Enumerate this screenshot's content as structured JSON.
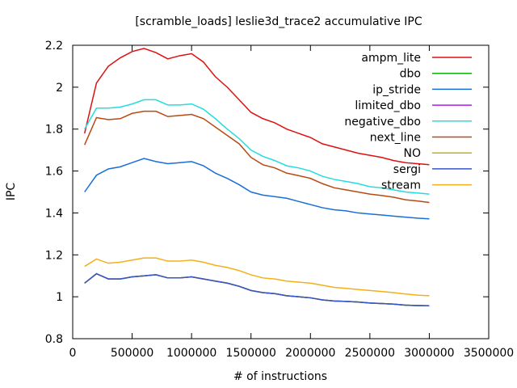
{
  "chart_data": {
    "type": "line",
    "title": "[scramble_loads] leslie3d_trace2 accumulative IPC",
    "xlabel": "# of instructions",
    "ylabel": "IPC",
    "xlim": [
      0,
      3500000
    ],
    "ylim": [
      0.8,
      2.2
    ],
    "xticks": [
      0,
      500000,
      1000000,
      1500000,
      2000000,
      2500000,
      3000000,
      3500000
    ],
    "yticks": [
      0.8,
      1,
      1.2,
      1.4,
      1.6,
      1.8,
      2,
      2.2
    ],
    "xtick_labels": [
      "0",
      "500000",
      "1000000",
      "1500000",
      "2000000",
      "2500000",
      "3000000",
      "3500000"
    ],
    "ytick_labels": [
      "0.8",
      "1",
      "1.2",
      "1.4",
      "1.6",
      "1.8",
      "2",
      "2.2"
    ],
    "grid": false,
    "legend_position": "top-right",
    "x": [
      100000,
      200000,
      300000,
      400000,
      500000,
      600000,
      700000,
      800000,
      900000,
      1000000,
      1100000,
      1200000,
      1300000,
      1400000,
      1500000,
      1600000,
      1700000,
      1800000,
      1900000,
      2000000,
      2100000,
      2200000,
      2300000,
      2400000,
      2500000,
      2600000,
      2700000,
      2800000,
      2900000,
      3000000
    ],
    "series": [
      {
        "name": "ampm_lite",
        "color": "#dd1111",
        "values": [
          1.78,
          2.02,
          2.1,
          2.14,
          2.17,
          2.185,
          2.165,
          2.135,
          2.15,
          2.16,
          2.12,
          2.05,
          2.0,
          1.94,
          1.88,
          1.85,
          1.83,
          1.8,
          1.78,
          1.76,
          1.73,
          1.715,
          1.7,
          1.685,
          1.675,
          1.665,
          1.65,
          1.64,
          1.635,
          1.63
        ]
      },
      {
        "name": "dbo",
        "color": "#11aa11",
        "values": [
          1.065,
          1.11,
          1.085,
          1.085,
          1.095,
          1.1,
          1.105,
          1.09,
          1.09,
          1.095,
          1.085,
          1.075,
          1.065,
          1.05,
          1.03,
          1.02,
          1.015,
          1.005,
          1.0,
          0.995,
          0.985,
          0.98,
          0.978,
          0.975,
          0.97,
          0.968,
          0.965,
          0.96,
          0.958,
          0.957
        ]
      },
      {
        "name": "ip_stride",
        "color": "#1a6ed8",
        "values": [
          1.5,
          1.58,
          1.61,
          1.62,
          1.64,
          1.66,
          1.645,
          1.635,
          1.64,
          1.645,
          1.625,
          1.59,
          1.565,
          1.535,
          1.5,
          1.485,
          1.478,
          1.47,
          1.455,
          1.44,
          1.425,
          1.415,
          1.41,
          1.4,
          1.395,
          1.39,
          1.385,
          1.38,
          1.375,
          1.372
        ]
      },
      {
        "name": "limited_dbo",
        "color": "#aa22dd",
        "values": [
          1.065,
          1.11,
          1.085,
          1.085,
          1.095,
          1.1,
          1.105,
          1.09,
          1.09,
          1.095,
          1.085,
          1.075,
          1.065,
          1.05,
          1.03,
          1.02,
          1.015,
          1.005,
          1.0,
          0.995,
          0.985,
          0.98,
          0.978,
          0.975,
          0.97,
          0.968,
          0.965,
          0.96,
          0.958,
          0.957
        ]
      },
      {
        "name": "negative_dbo",
        "color": "#22dddd",
        "values": [
          1.8,
          1.9,
          1.9,
          1.905,
          1.92,
          1.94,
          1.94,
          1.915,
          1.915,
          1.92,
          1.895,
          1.85,
          1.8,
          1.755,
          1.7,
          1.67,
          1.65,
          1.625,
          1.615,
          1.6,
          1.575,
          1.56,
          1.55,
          1.54,
          1.525,
          1.52,
          1.51,
          1.5,
          1.495,
          1.49
        ]
      },
      {
        "name": "next_line",
        "color": "#b84a11",
        "values": [
          1.725,
          1.855,
          1.845,
          1.85,
          1.875,
          1.885,
          1.885,
          1.86,
          1.865,
          1.87,
          1.85,
          1.81,
          1.77,
          1.73,
          1.665,
          1.63,
          1.615,
          1.59,
          1.578,
          1.565,
          1.54,
          1.52,
          1.51,
          1.5,
          1.49,
          1.483,
          1.475,
          1.463,
          1.457,
          1.45
        ]
      },
      {
        "name": "NO",
        "color": "#c4b211",
        "values": [
          1.065,
          1.11,
          1.085,
          1.085,
          1.095,
          1.1,
          1.105,
          1.09,
          1.09,
          1.095,
          1.085,
          1.075,
          1.065,
          1.05,
          1.03,
          1.02,
          1.015,
          1.005,
          1.0,
          0.995,
          0.985,
          0.98,
          0.978,
          0.975,
          0.97,
          0.968,
          0.965,
          0.96,
          0.958,
          0.957
        ]
      },
      {
        "name": "sergi",
        "color": "#3355cc",
        "values": [
          1.065,
          1.11,
          1.085,
          1.085,
          1.095,
          1.1,
          1.105,
          1.09,
          1.09,
          1.095,
          1.085,
          1.075,
          1.065,
          1.05,
          1.03,
          1.02,
          1.015,
          1.005,
          1.0,
          0.995,
          0.985,
          0.98,
          0.978,
          0.975,
          0.97,
          0.968,
          0.965,
          0.96,
          0.958,
          0.957
        ]
      },
      {
        "name": "stream",
        "color": "#f2b01a",
        "values": [
          1.145,
          1.18,
          1.16,
          1.165,
          1.175,
          1.185,
          1.185,
          1.17,
          1.17,
          1.175,
          1.165,
          1.15,
          1.14,
          1.125,
          1.105,
          1.09,
          1.085,
          1.075,
          1.07,
          1.065,
          1.055,
          1.045,
          1.04,
          1.035,
          1.03,
          1.025,
          1.02,
          1.013,
          1.008,
          1.005
        ]
      }
    ]
  }
}
